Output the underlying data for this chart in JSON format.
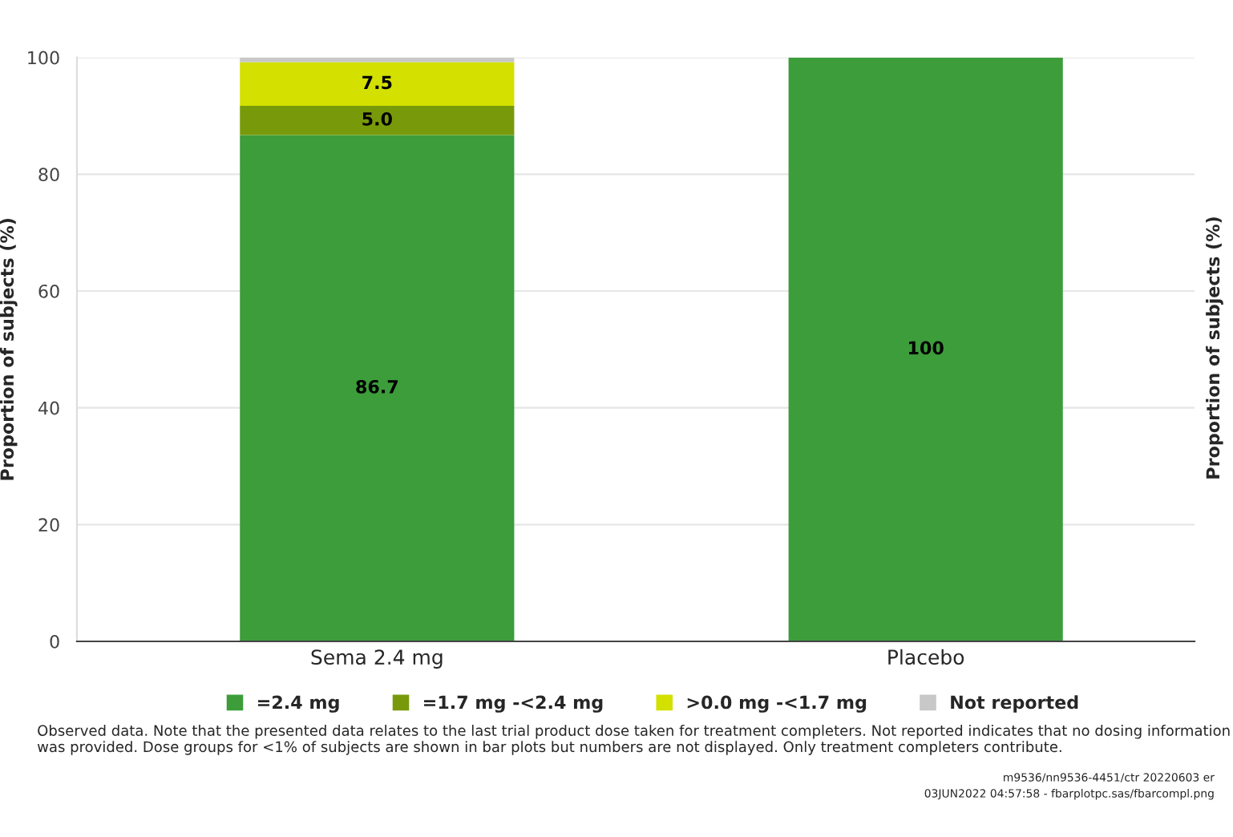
{
  "chart_data": {
    "type": "bar",
    "stacked": true,
    "categories": [
      "Sema 2.4 mg",
      "Placebo"
    ],
    "ylabel": "Proportion of subjects (%)",
    "y2label": "Proportion of subjects (%)",
    "ylim": [
      0,
      100
    ],
    "yticks": [
      0,
      20,
      40,
      60,
      80,
      100
    ],
    "grid": "y",
    "legend": "bottom",
    "series": [
      {
        "name": "=2.4 mg",
        "color": "#3c9d3a",
        "values": [
          86.7,
          100
        ],
        "value_labels": [
          "86.7",
          "100"
        ]
      },
      {
        "name": "=1.7 mg -<2.4 mg",
        "color": "#789a0a",
        "values": [
          5.0,
          0
        ],
        "value_labels": [
          "5.0",
          null
        ]
      },
      {
        "name": ">0.0 mg -<1.7 mg",
        "color": "#d3e000",
        "values": [
          7.5,
          0
        ],
        "value_labels": [
          "7.5",
          null
        ]
      },
      {
        "name": "Not reported",
        "color": "#c8c8c8",
        "values": [
          0.8,
          0
        ],
        "value_labels": [
          null,
          null
        ]
      }
    ],
    "annotations": [
      "Observed data. Note that the presented data relates to the last trial product dose taken for treatment completers. Not reported indicates that no dosing information was provided. Dose groups for <1% of subjects are shown in bar plots but numbers are not displayed. Only treatment completers contribute.",
      "m9536/nn9536-4451/ctr 20220603 er",
      "03JUN2022 04:57:58 - fbarplotpc.sas/fbarcompl.png"
    ]
  }
}
